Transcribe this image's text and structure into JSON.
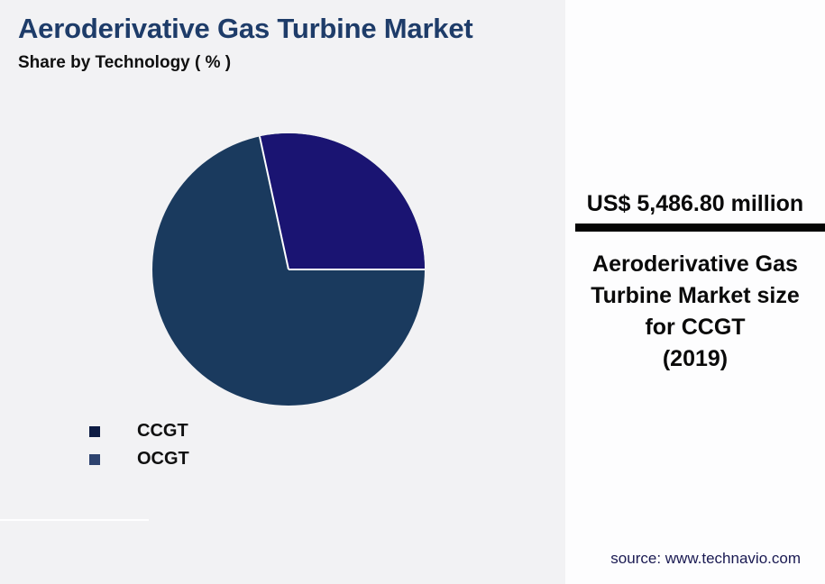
{
  "header": {
    "title": "Aeroderivative Gas Turbine Market",
    "subtitle": "Share by Technology ( % )"
  },
  "chart_data": {
    "type": "pie",
    "title": "Aeroderivative Gas Turbine Market",
    "subtitle": "Share by Technology ( % )",
    "labels": [
      "CCGT",
      "OCGT"
    ],
    "values": [
      28.4,
      71.6
    ],
    "unit": "%",
    "values_estimated_from_angles": true,
    "data_labels_shown": false,
    "start_angle_deg": 0,
    "direction": "counterclockwise",
    "slice_colors": [
      "#1a1472",
      "#1a3a5e"
    ],
    "separator_color": "#ffffff",
    "legend_position": "bottom-left"
  },
  "legend": {
    "items": [
      {
        "label": "CCGT",
        "color": "#0e1c44"
      },
      {
        "label": "OCGT",
        "color": "#2e436f"
      }
    ]
  },
  "panel": {
    "value": "US$ 5,486.80 million",
    "description_lines": [
      "Aeroderivative Gas",
      "Turbine Market size",
      "for CCGT",
      "(2019)"
    ],
    "source": "source: www.technavio.com"
  },
  "colors": {
    "title_text": "#1e3c69",
    "background_left": "#f2f2f4",
    "background_panel": "#fdfdfe",
    "divider_bar": "#050505",
    "source_text": "#1a1a52"
  }
}
